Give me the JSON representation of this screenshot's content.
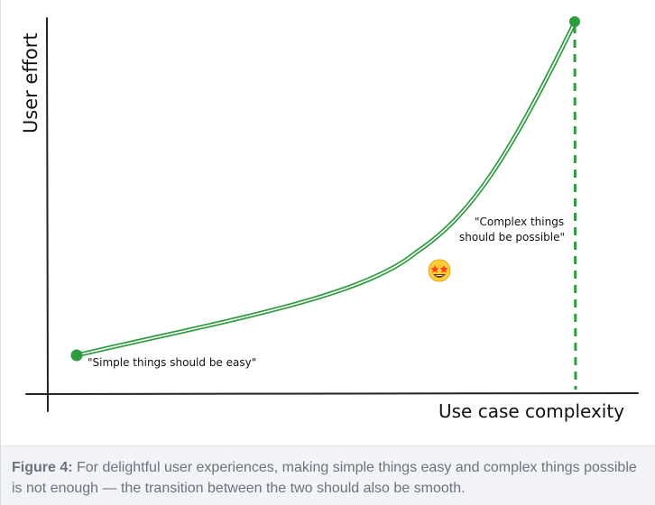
{
  "diagram": {
    "y_axis_label": "User effort",
    "x_axis_label": "Use case complexity",
    "annotation_simple": "\"Simple things should be easy\"",
    "annotation_complex_line1": "\"Complex things",
    "annotation_complex_line2": "should be possible\"",
    "emoji": "🤩",
    "colors": {
      "curve": "#2e9b3e",
      "dots": "#2e9b3e",
      "axes": "#222222"
    }
  },
  "caption": {
    "label": "Figure 4:",
    "text": " For delightful user experiences, making simple things easy and complex things possible is not enough — the transition between the two should also be smooth."
  }
}
